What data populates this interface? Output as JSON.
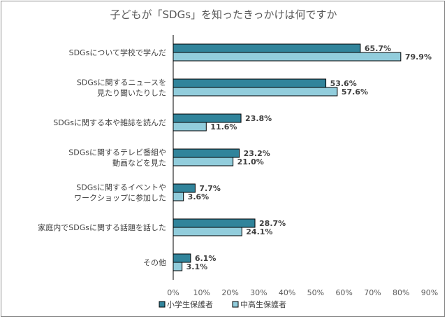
{
  "chart_data": {
    "type": "bar",
    "orientation": "horizontal",
    "title": "子どもが「SDGs」を知ったきっかけは何ですか",
    "categories": [
      [
        "SDGsについて学校で学んだ"
      ],
      [
        "SDGsに関するニュースを",
        "見たり聞いたりした"
      ],
      [
        "SDGsに関する本や雑誌を読んだ"
      ],
      [
        "SDGsに関するテレビ番組や",
        "動画などを見た"
      ],
      [
        "SDGsに関するイベントや",
        "ワークショップに参加した"
      ],
      [
        "家庭内でSDGsに関する話題を話した"
      ],
      [
        "その他"
      ]
    ],
    "series": [
      {
        "name": "小学生保護者",
        "color": "#31849b",
        "values": [
          65.7,
          53.6,
          23.8,
          23.2,
          7.7,
          28.7,
          6.1
        ],
        "labels": [
          "65.7%",
          "53.6%",
          "23.8%",
          "23.2%",
          "7.7%",
          "28.7%",
          "6.1%"
        ]
      },
      {
        "name": "中高生保護者",
        "color": "#92cddc",
        "values": [
          79.9,
          57.6,
          11.6,
          21.0,
          3.6,
          24.1,
          3.1
        ],
        "labels": [
          "79.9%",
          "57.6%",
          "11.6%",
          "21.0%",
          "3.6%",
          "24.1%",
          "3.1%"
        ]
      }
    ],
    "xlim": [
      0,
      90
    ],
    "ticks": [
      0,
      10,
      20,
      30,
      40,
      50,
      60,
      70,
      80,
      90
    ],
    "tick_labels": [
      "0%",
      "10%",
      "20%",
      "30%",
      "40%",
      "50%",
      "60%",
      "70%",
      "80%",
      "90%"
    ],
    "legend_position": "bottom",
    "grid": false
  }
}
